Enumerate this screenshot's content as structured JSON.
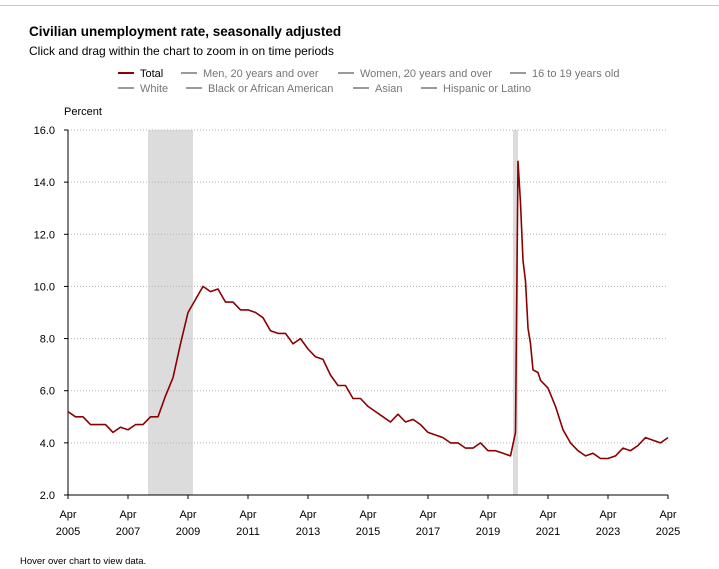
{
  "title": "Civilian unemployment rate, seasonally adjusted",
  "subtitle": "Click and drag within the chart to zoom in on time periods",
  "footer": "Hover over chart to view data.",
  "legend": [
    {
      "label": "Total",
      "color": "#8b0000",
      "active": true
    },
    {
      "label": "Men, 20 years and over",
      "color": "#9a9a9a",
      "active": false
    },
    {
      "label": "Women, 20 years and over",
      "color": "#9a9a9a",
      "active": false
    },
    {
      "label": "16 to 19 years old",
      "color": "#9a9a9a",
      "active": false
    },
    {
      "label": "White",
      "color": "#9a9a9a",
      "active": false
    },
    {
      "label": "Black or African American",
      "color": "#9a9a9a",
      "active": false
    },
    {
      "label": "Asian",
      "color": "#9a9a9a",
      "active": false
    },
    {
      "label": "Hispanic or Latino",
      "color": "#9a9a9a",
      "active": false
    }
  ],
  "chart_data": {
    "type": "line",
    "ylabel": "Percent",
    "ylim": [
      2.0,
      16.0
    ],
    "yticks": [
      "2.0",
      "4.0",
      "6.0",
      "8.0",
      "10.0",
      "12.0",
      "14.0",
      "16.0"
    ],
    "xlim": [
      "2005-04",
      "2025-04"
    ],
    "xticks": [
      {
        "month": "Apr",
        "year": "2005",
        "date": "2005-04"
      },
      {
        "month": "Apr",
        "year": "2007",
        "date": "2007-04"
      },
      {
        "month": "Apr",
        "year": "2009",
        "date": "2009-04"
      },
      {
        "month": "Apr",
        "year": "2011",
        "date": "2011-04"
      },
      {
        "month": "Apr",
        "year": "2013",
        "date": "2013-04"
      },
      {
        "month": "Apr",
        "year": "2015",
        "date": "2015-04"
      },
      {
        "month": "Apr",
        "year": "2017",
        "date": "2017-04"
      },
      {
        "month": "Apr",
        "year": "2019",
        "date": "2019-04"
      },
      {
        "month": "Apr",
        "year": "2021",
        "date": "2021-04"
      },
      {
        "month": "Apr",
        "year": "2023",
        "date": "2023-04"
      },
      {
        "month": "Apr",
        "year": "2025",
        "date": "2025-04"
      }
    ],
    "grid": true,
    "recessions": [
      {
        "start": "2007-12",
        "end": "2009-06"
      },
      {
        "start": "2020-02",
        "end": "2020-04"
      }
    ],
    "series": [
      {
        "name": "Total",
        "color": "#8b0000",
        "points": [
          [
            "2005-04",
            5.2
          ],
          [
            "2005-07",
            5.0
          ],
          [
            "2005-10",
            5.0
          ],
          [
            "2006-01",
            4.7
          ],
          [
            "2006-04",
            4.7
          ],
          [
            "2006-07",
            4.7
          ],
          [
            "2006-10",
            4.4
          ],
          [
            "2007-01",
            4.6
          ],
          [
            "2007-04",
            4.5
          ],
          [
            "2007-07",
            4.7
          ],
          [
            "2007-10",
            4.7
          ],
          [
            "2008-01",
            5.0
          ],
          [
            "2008-04",
            5.0
          ],
          [
            "2008-07",
            5.8
          ],
          [
            "2008-10",
            6.5
          ],
          [
            "2009-01",
            7.8
          ],
          [
            "2009-04",
            9.0
          ],
          [
            "2009-07",
            9.5
          ],
          [
            "2009-10",
            10.0
          ],
          [
            "2010-01",
            9.8
          ],
          [
            "2010-04",
            9.9
          ],
          [
            "2010-07",
            9.4
          ],
          [
            "2010-10",
            9.4
          ],
          [
            "2011-01",
            9.1
          ],
          [
            "2011-04",
            9.1
          ],
          [
            "2011-07",
            9.0
          ],
          [
            "2011-10",
            8.8
          ],
          [
            "2012-01",
            8.3
          ],
          [
            "2012-04",
            8.2
          ],
          [
            "2012-07",
            8.2
          ],
          [
            "2012-10",
            7.8
          ],
          [
            "2013-01",
            8.0
          ],
          [
            "2013-04",
            7.6
          ],
          [
            "2013-07",
            7.3
          ],
          [
            "2013-10",
            7.2
          ],
          [
            "2014-01",
            6.6
          ],
          [
            "2014-04",
            6.2
          ],
          [
            "2014-07",
            6.2
          ],
          [
            "2014-10",
            5.7
          ],
          [
            "2015-01",
            5.7
          ],
          [
            "2015-04",
            5.4
          ],
          [
            "2015-07",
            5.2
          ],
          [
            "2015-10",
            5.0
          ],
          [
            "2016-01",
            4.8
          ],
          [
            "2016-04",
            5.1
          ],
          [
            "2016-07",
            4.8
          ],
          [
            "2016-10",
            4.9
          ],
          [
            "2017-01",
            4.7
          ],
          [
            "2017-04",
            4.4
          ],
          [
            "2017-07",
            4.3
          ],
          [
            "2017-10",
            4.2
          ],
          [
            "2018-01",
            4.0
          ],
          [
            "2018-04",
            4.0
          ],
          [
            "2018-07",
            3.8
          ],
          [
            "2018-10",
            3.8
          ],
          [
            "2019-01",
            4.0
          ],
          [
            "2019-04",
            3.7
          ],
          [
            "2019-07",
            3.7
          ],
          [
            "2019-10",
            3.6
          ],
          [
            "2020-01",
            3.5
          ],
          [
            "2020-03",
            4.4
          ],
          [
            "2020-04",
            14.8
          ],
          [
            "2020-05",
            13.2
          ],
          [
            "2020-06",
            11.0
          ],
          [
            "2020-07",
            10.2
          ],
          [
            "2020-08",
            8.4
          ],
          [
            "2020-09",
            7.8
          ],
          [
            "2020-10",
            6.8
          ],
          [
            "2020-12",
            6.7
          ],
          [
            "2021-01",
            6.4
          ],
          [
            "2021-04",
            6.1
          ],
          [
            "2021-07",
            5.4
          ],
          [
            "2021-10",
            4.5
          ],
          [
            "2022-01",
            4.0
          ],
          [
            "2022-04",
            3.7
          ],
          [
            "2022-07",
            3.5
          ],
          [
            "2022-10",
            3.6
          ],
          [
            "2023-01",
            3.4
          ],
          [
            "2023-04",
            3.4
          ],
          [
            "2023-07",
            3.5
          ],
          [
            "2023-10",
            3.8
          ],
          [
            "2024-01",
            3.7
          ],
          [
            "2024-04",
            3.9
          ],
          [
            "2024-07",
            4.2
          ],
          [
            "2024-10",
            4.1
          ],
          [
            "2025-01",
            4.0
          ],
          [
            "2025-04",
            4.2
          ]
        ]
      }
    ]
  }
}
